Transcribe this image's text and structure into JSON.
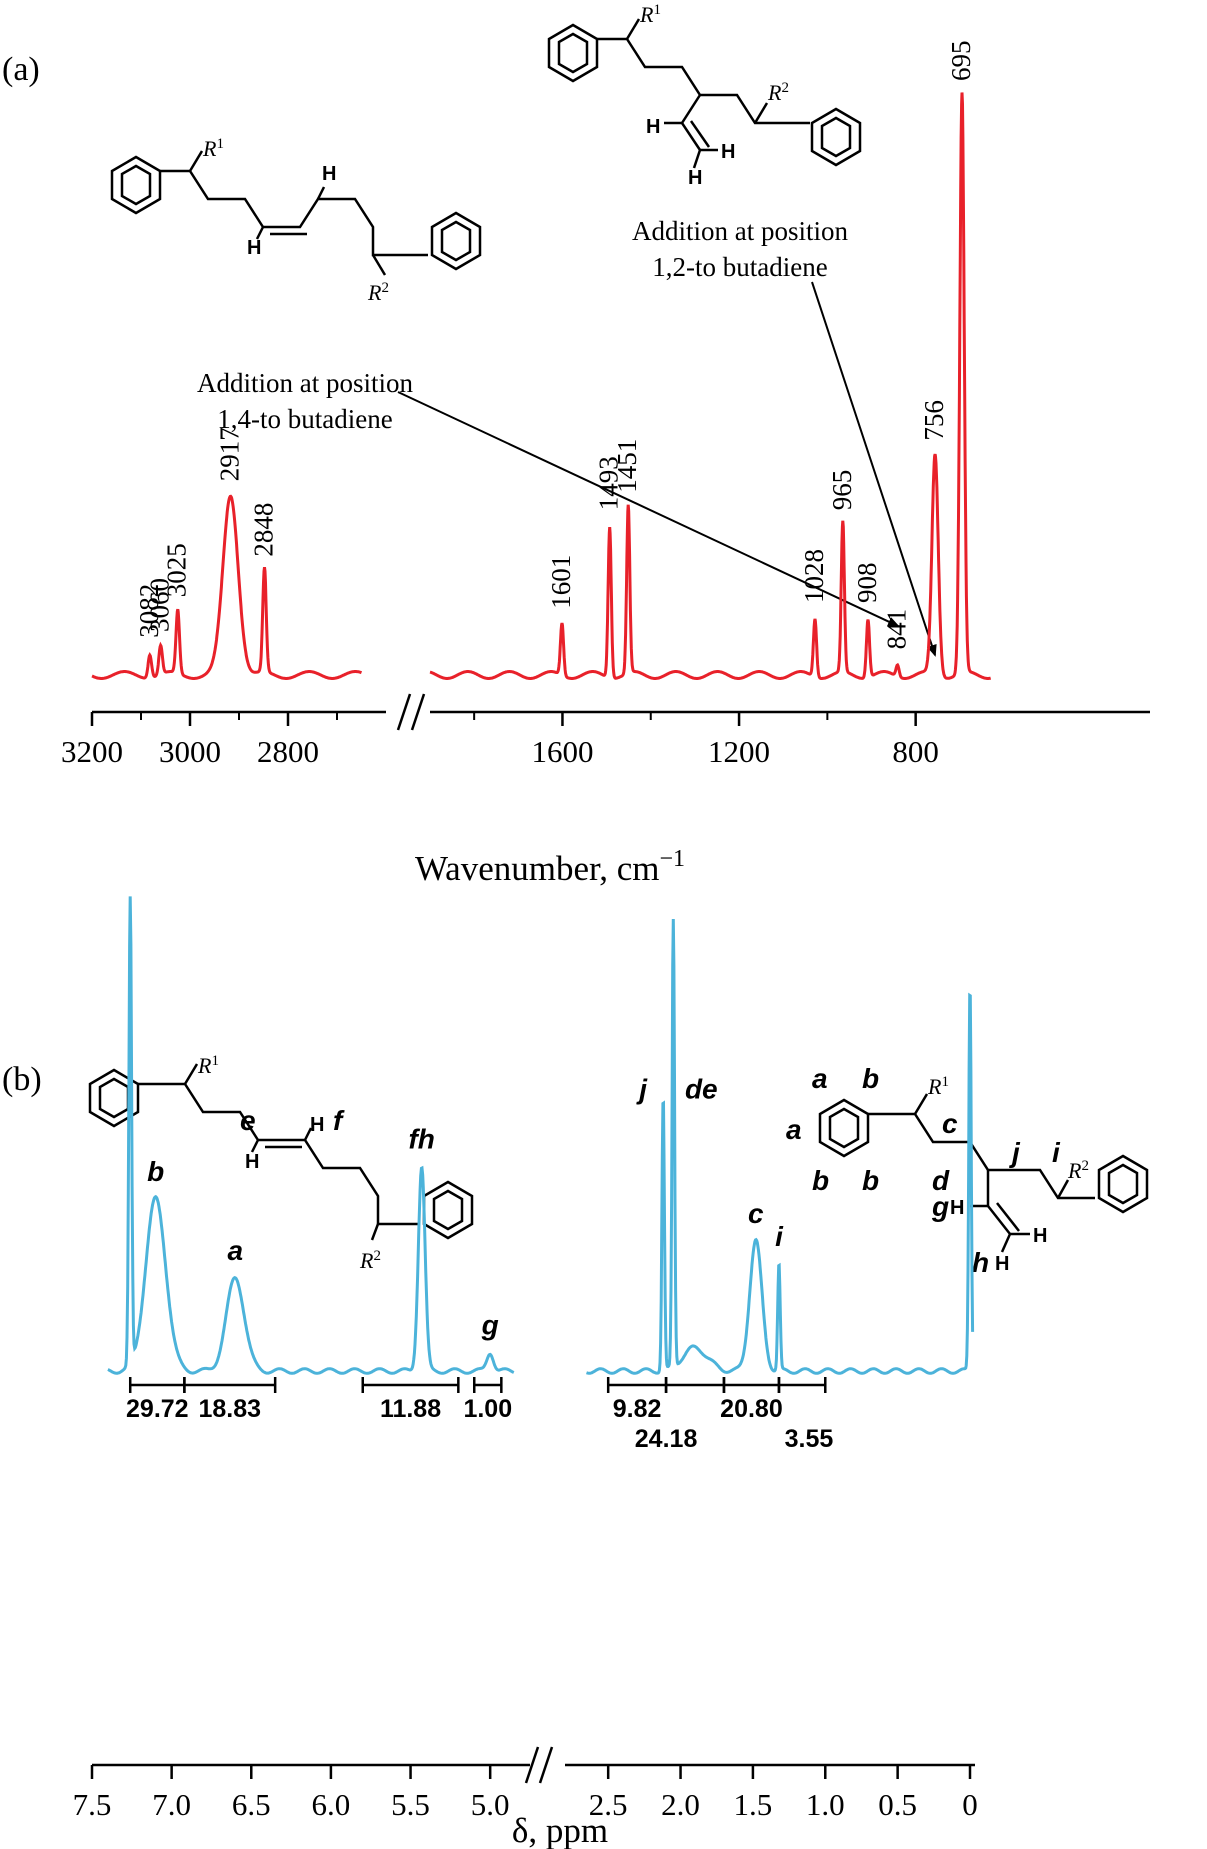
{
  "panel_a": {
    "tag": "(a)",
    "x_axis_label": "Wavenumber, cm",
    "x_axis_unit_superscript": "−1",
    "ticks": [
      "3200",
      "3000",
      "2800",
      "1600",
      "1200",
      "800"
    ],
    "color": "#e8212a",
    "structure_1_caption": [
      "Addition at position",
      "1,4-to butadiene"
    ],
    "structure_2_caption": [
      "Addition at position",
      "1,2-to butadiene"
    ],
    "R1": "R1",
    "R2": "R2",
    "H": "H"
  },
  "panel_b": {
    "tag": "(b)",
    "x_axis_label": "δ, ppm",
    "ticks": [
      "7.5",
      "7.0",
      "6.5",
      "6.0",
      "5.5",
      "5.0",
      "2.5",
      "2.0",
      "1.5",
      "1.0",
      "0.5",
      "0"
    ],
    "color": "#4cb3da",
    "integrals": [
      "29.72",
      "18.83",
      "11.88",
      "1.00",
      "9.82",
      "24.18",
      "20.80",
      "3.55"
    ],
    "struct_left_labels": [
      "e",
      "f"
    ],
    "struct_right_labels": [
      "a",
      "b",
      "a",
      "b",
      "b",
      "c",
      "d",
      "j",
      "i",
      "g",
      "h"
    ],
    "R1": "R1",
    "R2": "R2",
    "H": "H"
  },
  "chart_data": [
    {
      "type": "line",
      "panel": "(a)",
      "xlabel": "Wavenumber, cm−1",
      "ylabel": "",
      "x_axis_break": [
        2650,
        1900
      ],
      "xlim": [
        3200,
        630
      ],
      "x_reversed": true,
      "peaks": [
        {
          "x": 3082,
          "label": "3082",
          "y": 0.04
        },
        {
          "x": 3060,
          "label": "3060",
          "y": 0.05
        },
        {
          "x": 3025,
          "label": "3025",
          "y": 0.11
        },
        {
          "x": 2917,
          "label": "2917",
          "y": 0.31
        },
        {
          "x": 2848,
          "label": "2848",
          "y": 0.18
        },
        {
          "x": 1601,
          "label": "1601",
          "y": 0.09
        },
        {
          "x": 1493,
          "label": "1493",
          "y": 0.26
        },
        {
          "x": 1451,
          "label": "1451",
          "y": 0.29
        },
        {
          "x": 1028,
          "label": "1028",
          "y": 0.1
        },
        {
          "x": 965,
          "label": "965",
          "y": 0.26
        },
        {
          "x": 908,
          "label": "908",
          "y": 0.1
        },
        {
          "x": 841,
          "label": "841",
          "y": 0.02
        },
        {
          "x": 756,
          "label": "756",
          "y": 0.38
        },
        {
          "x": 695,
          "label": "695",
          "y": 1.0
        }
      ]
    },
    {
      "type": "line",
      "panel": "(b)",
      "xlabel": "δ, ppm",
      "ylabel": "",
      "x_axis_break": [
        4.8,
        2.7
      ],
      "xlim": [
        7.5,
        0
      ],
      "x_reversed": true,
      "peaks": [
        {
          "x": 7.26,
          "label": "",
          "y": 1.0
        },
        {
          "x": 7.1,
          "label": "b",
          "y": 0.37
        },
        {
          "x": 6.6,
          "label": "a",
          "y": 0.2
        },
        {
          "x": 5.43,
          "label": "fh",
          "y": 0.44
        },
        {
          "x": 5.0,
          "label": "g",
          "y": 0.04
        },
        {
          "x": 2.12,
          "label": "j",
          "y": 0.59
        },
        {
          "x": 2.05,
          "label": "de",
          "y": 0.96
        },
        {
          "x": 1.48,
          "label": "c",
          "y": 0.28
        },
        {
          "x": 1.32,
          "label": "i",
          "y": 0.23
        },
        {
          "x": 0.0,
          "label": "",
          "y": 0.83
        }
      ],
      "integrals": [
        {
          "from": 7.26,
          "to": 6.92,
          "value": "29.72"
        },
        {
          "from": 6.92,
          "to": 6.35,
          "value": "18.83"
        },
        {
          "from": 5.8,
          "to": 5.2,
          "value": "11.88"
        },
        {
          "from": 5.1,
          "to": 4.93,
          "value": "1.00"
        },
        {
          "from": 2.5,
          "to": 2.1,
          "value": "9.82"
        },
        {
          "from": 2.1,
          "to": 1.7,
          "value": "24.18"
        },
        {
          "from": 1.7,
          "to": 1.32,
          "value": "20.80"
        },
        {
          "from": 1.32,
          "to": 1.0,
          "value": "3.55"
        }
      ]
    }
  ]
}
